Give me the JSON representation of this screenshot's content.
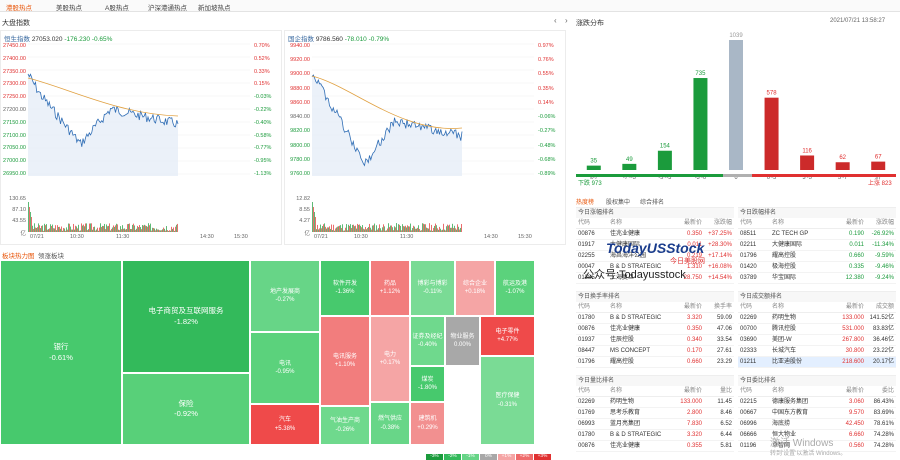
{
  "nav_tabs": [
    "港股热点",
    "美股热点",
    "A股热点",
    "沪深港通热点",
    "新加坡热点"
  ],
  "section_title": "大盘指数",
  "index1": {
    "name": "恒生指数",
    "value": "27053.020",
    "change": "-176.230",
    "pct": "-0.65%",
    "left_ticks": [
      "27450.00",
      "27400.00",
      "27350.00",
      "27300.00",
      "27250.00",
      "27200.00",
      "27150.00",
      "27100.00",
      "27050.00",
      "27000.00",
      "26950.00"
    ],
    "right_ticks": [
      "0.70%",
      "0.52%",
      "0.33%",
      "0.15%",
      "-0.03%",
      "-0.22%",
      "-0.40%",
      "-0.58%",
      "-0.77%",
      "-0.95%",
      "-1.13%"
    ],
    "vol_ticks": [
      "130.65",
      "87.10",
      "43.55",
      "亿"
    ],
    "time_ticks": [
      "07/21",
      "10:30",
      "11:30",
      "14:30",
      "15:30"
    ]
  },
  "index2": {
    "name": "国企指数",
    "value": "9786.560",
    "change": "-78.010",
    "pct": "-0.79%",
    "left_ticks": [
      "9940.00",
      "9920.00",
      "9900.00",
      "9880.00",
      "9860.00",
      "9840.00",
      "9820.00",
      "9800.00",
      "9780.00",
      "9760.00"
    ],
    "right_ticks": [
      "0.97%",
      "0.76%",
      "0.55%",
      "0.35%",
      "0.14%",
      "-0.06%",
      "-0.27%",
      "-0.48%",
      "-0.68%",
      "-0.89%"
    ],
    "vol_ticks": [
      "12.82",
      "8.55",
      "4.27",
      "亿"
    ],
    "time_ticks": [
      "07/21",
      "10:30",
      "11:30",
      "14:30",
      "15:30"
    ]
  },
  "dist": {
    "title": "涨跌分布",
    "datetime": "2021/07/21 13:58:27",
    "chart_data": {
      "type": "bar",
      "categories": [
        "≤-7",
        "-7~-5",
        "-5~-3",
        "-3~0",
        "0",
        "0~3",
        "3~5",
        "5~7",
        "≥7"
      ],
      "values": [
        35,
        49,
        154,
        735,
        1039,
        578,
        116,
        62,
        67
      ]
    },
    "down_label": "下跌 973",
    "up_label": "上涨 823"
  },
  "heatmap": {
    "tabs": [
      "板块热力图",
      "领涨板块"
    ],
    "cells": [
      {
        "name": "银行",
        "pct": "-0.61%",
        "c": "#47c96d"
      },
      {
        "name": "电子商贸及互联网服务",
        "pct": "-1.82%",
        "c": "#33ba5b"
      },
      {
        "name": "保险",
        "pct": "-0.92%",
        "c": "#58d079"
      },
      {
        "name": "地产发展商",
        "pct": "-0.27%",
        "c": "#67d587"
      },
      {
        "name": "电讯",
        "pct": "-0.95%",
        "c": "#5bd27c"
      },
      {
        "name": "汽车",
        "pct": "+5.38%",
        "c": "#ef4a4a"
      },
      {
        "name": "软件开发",
        "pct": "-1.36%",
        "c": "#47c96d"
      },
      {
        "name": "电讯服务",
        "pct": "+1.10%",
        "c": "#f27d7d"
      },
      {
        "name": "气油生产商",
        "pct": "-0.26%",
        "c": "#6fd98d"
      },
      {
        "name": "电力",
        "pct": "+0.17%",
        "c": "#f5a5a5"
      },
      {
        "name": "燃气供应",
        "pct": "-0.38%",
        "c": "#68d688"
      },
      {
        "name": "药品",
        "pct": "+1.12%",
        "c": "#f27d7d"
      },
      {
        "name": "证券及经纪",
        "pct": "-0.40%",
        "c": "#6fd98d"
      },
      {
        "name": "煤炭",
        "pct": "-1.80%",
        "c": "#47c96d"
      },
      {
        "name": "建筑机",
        "pct": "+0.29%",
        "c": "#f29090"
      },
      {
        "name": "博彩与博彩",
        "pct": "-0.11%",
        "c": "#7adb95"
      },
      {
        "name": "物业服务",
        "pct": "0.00%",
        "c": "#a8a8a8"
      },
      {
        "name": "综合企业",
        "pct": "+0.18%",
        "c": "#f5a5a5"
      },
      {
        "name": "航运及港",
        "pct": "-1.07%",
        "c": "#5bd27c"
      },
      {
        "name": "电子零件",
        "pct": "+4.77%",
        "c": "#ef4a4a"
      },
      {
        "name": "医疗保健",
        "pct": "-0.31%",
        "c": "#7adb95"
      }
    ],
    "legend": [
      "-3%",
      "-2%",
      "-1%",
      "0%",
      "+1%",
      "+2%",
      "+3%"
    ]
  },
  "ranks": {
    "tabs": [
      "热度榜",
      "股权集中",
      "综合排名"
    ],
    "left_tables": [
      {
        "title": "今日涨幅排名",
        "headers": [
          "代码",
          "名称",
          "最新价",
          "涨跌幅"
        ],
        "rows": [
          [
            "00876",
            "佳兆业健康",
            "0.350",
            "+37.25%"
          ],
          [
            "01917",
            "大健康国际",
            "0.011",
            "+28.30%"
          ],
          [
            "02255",
            "海昌海洋公园",
            "0.219",
            "+17.14%"
          ],
          [
            "00047",
            "B & D STRATEGIC",
            "1.310",
            "+16.08%"
          ],
          [
            "01385",
            "上海复旦",
            "28.750",
            "+14.54%"
          ]
        ]
      },
      {
        "title": "今日换手率排名",
        "headers": [
          "代码",
          "名称",
          "最新价",
          "换手率"
        ],
        "rows": [
          [
            "01780",
            "B & D STRATEGIC",
            "3.320",
            "59.09"
          ],
          [
            "00876",
            "佳兆业健康",
            "0.350",
            "47.06"
          ],
          [
            "01937",
            "佳辰控股",
            "0.340",
            "33.54"
          ],
          [
            "08447",
            "MS CONCEPT",
            "0.170",
            "27.61"
          ],
          [
            "01796",
            "耀高控股",
            "0.660",
            "23.29"
          ]
        ]
      },
      {
        "title": "今日量比排名",
        "headers": [
          "代码",
          "名称",
          "最新价",
          "量比"
        ],
        "rows": [
          [
            "02269",
            "药明生物",
            "133.000",
            "11.45"
          ],
          [
            "01769",
            "思考乐教育",
            "2.800",
            "8.46"
          ],
          [
            "06993",
            "蓝月亮集团",
            "7.830",
            "6.52"
          ],
          [
            "01780",
            "B & D STRATEGIC",
            "3.320",
            "6.44"
          ],
          [
            "00876",
            "佳兆业健康",
            "0.355",
            "5.81"
          ]
        ]
      }
    ],
    "right_tables": [
      {
        "title": "今日跌幅排名",
        "headers": [
          "代码",
          "名称",
          "最新价",
          "涨跌幅"
        ],
        "rows": [
          [
            "08511",
            "ZC TECH GP",
            "0.190",
            "-26.92%"
          ],
          [
            "02211",
            "大健康国际",
            "0.011",
            "-11.34%"
          ],
          [
            "01796",
            "耀高控股",
            "0.660",
            "-9.59%"
          ],
          [
            "01420",
            "极海控股",
            "0.335",
            "-9.46%"
          ],
          [
            "03789",
            "华宝国际",
            "12.380",
            "-9.24%"
          ]
        ]
      },
      {
        "title": "今日成交额排名",
        "headers": [
          "代码",
          "名称",
          "最新价",
          "成交额"
        ],
        "rows": [
          [
            "02269",
            "药明生物",
            "133.000",
            "141.52亿"
          ],
          [
            "00700",
            "腾讯控股",
            "531.000",
            "83.83亿"
          ],
          [
            "03690",
            "美团-W",
            "267.800",
            "36.46亿"
          ],
          [
            "02333",
            "长城汽车",
            "30.800",
            "23.22亿"
          ],
          [
            "01211",
            "比亚迪股份",
            "218.600",
            "20.17亿"
          ]
        ]
      },
      {
        "title": "今日委比排名",
        "headers": [
          "代码",
          "名称",
          "最新价",
          "委比"
        ],
        "rows": [
          [
            "02215",
            "德康服务集团",
            "3.060",
            "86.43%"
          ],
          [
            "00667",
            "中国东方教育",
            "9.570",
            "83.69%"
          ],
          [
            "06996",
            "海底捞",
            "42.450",
            "78.61%"
          ],
          [
            "06666",
            "恒大物业",
            "6.660",
            "74.28%"
          ],
          [
            "01196",
            "卓智网",
            "0.560",
            "74.28%"
          ]
        ]
      }
    ]
  },
  "watermark": {
    "brand": "TodayUSStock",
    "brand_sub": "今日美股网",
    "wechat": "公众号:Todayusstock",
    "os1": "激活 Windows",
    "os2": "转到'设置'以激活 Windows。"
  },
  "colors": {
    "up": "#e03030",
    "down": "#1b9b3c",
    "accent": "#e8570c",
    "line": "#2f6db5"
  }
}
